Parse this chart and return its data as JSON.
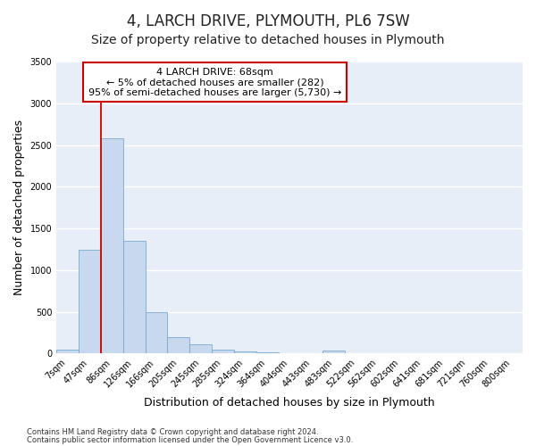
{
  "title": "4, LARCH DRIVE, PLYMOUTH, PL6 7SW",
  "subtitle": "Size of property relative to detached houses in Plymouth",
  "xlabel": "Distribution of detached houses by size in Plymouth",
  "ylabel": "Number of detached properties",
  "bar_labels": [
    "7sqm",
    "47sqm",
    "86sqm",
    "126sqm",
    "166sqm",
    "205sqm",
    "245sqm",
    "285sqm",
    "324sqm",
    "364sqm",
    "404sqm",
    "443sqm",
    "483sqm",
    "522sqm",
    "562sqm",
    "602sqm",
    "641sqm",
    "681sqm",
    "721sqm",
    "760sqm",
    "800sqm"
  ],
  "bar_values": [
    50,
    1240,
    2580,
    1350,
    490,
    200,
    110,
    50,
    25,
    12,
    6,
    3,
    40,
    0,
    0,
    0,
    0,
    0,
    0,
    0,
    0
  ],
  "bar_color": "#c8d8ee",
  "bar_edge_color": "#7aaace",
  "vline_color": "#cc0000",
  "annotation_text": "4 LARCH DRIVE: 68sqm\n← 5% of detached houses are smaller (282)\n95% of semi-detached houses are larger (5,730) →",
  "annotation_box_facecolor": "#ffffff",
  "annotation_box_edgecolor": "#cc0000",
  "ylim": [
    0,
    3500
  ],
  "yticks": [
    0,
    500,
    1000,
    1500,
    2000,
    2500,
    3000,
    3500
  ],
  "footnote1": "Contains HM Land Registry data © Crown copyright and database right 2024.",
  "footnote2": "Contains public sector information licensed under the Open Government Licence v3.0.",
  "fig_bg_color": "#ffffff",
  "plot_bg_color": "#e8eef8",
  "grid_color": "#ffffff",
  "title_fontsize": 12,
  "subtitle_fontsize": 10,
  "axis_label_fontsize": 9,
  "tick_fontsize": 7,
  "footnote_fontsize": 6,
  "annotation_fontsize": 8
}
